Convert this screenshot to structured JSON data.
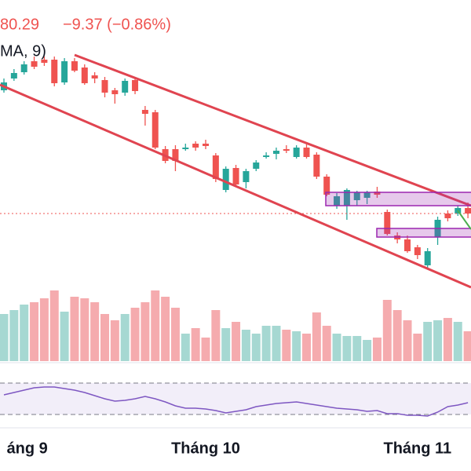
{
  "chart_data": {
    "type": "candlestick",
    "price_label": "80.29",
    "change_label": "−9.37 (−0.86%)",
    "indicator_label": "MA, 9)",
    "categories": [
      null,
      null,
      "áng 9",
      null,
      null,
      null,
      null,
      null,
      null,
      null,
      null,
      null,
      null,
      null,
      null,
      null,
      null,
      null,
      null,
      null,
      "Tháng 10",
      null,
      null,
      null,
      null,
      null,
      null,
      null,
      null,
      null,
      null,
      null,
      null,
      null,
      null,
      null,
      null,
      null,
      null,
      null,
      null,
      "Tháng 11",
      null,
      null,
      null,
      null,
      null
    ],
    "open": [
      245,
      260,
      268,
      282,
      284,
      284,
      255,
      282,
      274,
      264,
      258,
      245,
      242,
      258,
      220,
      217,
      170,
      170,
      170,
      177,
      177,
      162,
      118,
      146,
      128,
      145,
      160,
      164,
      170,
      160,
      172,
      163,
      135,
      98,
      98,
      105,
      108,
      116,
      90,
      60,
      55,
      45,
      22,
      58,
      88,
      88,
      95
    ],
    "high": [
      260,
      272,
      282,
      288,
      288,
      288,
      286,
      286,
      278,
      268,
      262,
      248,
      260,
      262,
      225,
      220,
      174,
      175,
      177,
      180,
      182,
      165,
      148,
      150,
      145,
      156,
      166,
      172,
      175,
      175,
      176,
      166,
      138,
      114,
      120,
      117,
      117,
      122,
      93,
      64,
      60,
      48,
      44,
      84,
      92,
      98,
      102
    ],
    "low": [
      242,
      257,
      265,
      272,
      276,
      250,
      252,
      268,
      252,
      254,
      236,
      228,
      238,
      240,
      200,
      170,
      152,
      142,
      168,
      168,
      170,
      128,
      115,
      122,
      120,
      142,
      158,
      157,
      165,
      158,
      158,
      132,
      110,
      94,
      80,
      98,
      100,
      108,
      60,
      50,
      38,
      30,
      18,
      48,
      78,
      85,
      82
    ],
    "close": [
      255,
      267,
      278,
      275,
      280,
      254,
      282,
      270,
      254,
      260,
      242,
      240,
      257,
      244,
      215,
      172,
      155,
      155,
      172,
      172,
      174,
      132,
      145,
      125,
      142,
      153,
      162,
      168,
      168,
      172,
      160,
      135,
      112,
      110,
      118,
      115,
      115,
      112,
      62,
      55,
      40,
      35,
      40,
      80,
      82,
      95,
      88
    ],
    "ylim": [
      0,
      360
    ],
    "volume": [
      60,
      65,
      72,
      75,
      80,
      90,
      63,
      82,
      80,
      75,
      60,
      52,
      60,
      68,
      75,
      90,
      82,
      68,
      35,
      42,
      30,
      65,
      42,
      50,
      40,
      35,
      45,
      45,
      40,
      38,
      35,
      62,
      45,
      35,
      32,
      32,
      27,
      30,
      78,
      65,
      52,
      35,
      50,
      52,
      55,
      50,
      38
    ],
    "volume_lim": [
      0,
      100
    ],
    "rsi": [
      55,
      58,
      61,
      64,
      65,
      65,
      63,
      61,
      58,
      54,
      50,
      47,
      48,
      50,
      53,
      50,
      46,
      41,
      38,
      38,
      37,
      35,
      32,
      34,
      36,
      40,
      42,
      44,
      45,
      46,
      44,
      42,
      40,
      38,
      37,
      36,
      34,
      35,
      31,
      31,
      29,
      29,
      28,
      33,
      40,
      42,
      45
    ],
    "rsi_lim": [
      18,
      90
    ],
    "rsi_bands": [
      30,
      70
    ],
    "up_color": "#26a69a",
    "down_color": "#ef5350",
    "volume_up_color": "#a6d8d2",
    "volume_down_color": "#f5abae",
    "rsi_color": "#7e57c2"
  }
}
